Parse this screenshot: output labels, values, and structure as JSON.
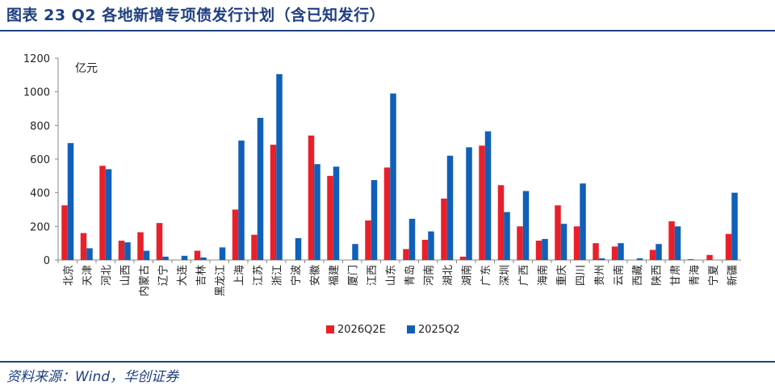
{
  "header": {
    "title": "图表 23   Q2 各地新增专项债发行计划（含已知发行）"
  },
  "footer": {
    "source": "资料来源：Wind，华创证券"
  },
  "colors": {
    "series1": "#e8202a",
    "series2": "#1060b8",
    "rule": "#1f3f80"
  },
  "chart_data": {
    "type": "bar",
    "unit_label": "亿元",
    "ylim": [
      0,
      1200
    ],
    "yticks": [
      0,
      200,
      400,
      600,
      800,
      1000,
      1200
    ],
    "grid": false,
    "legend_position": "bottom-center",
    "categories": [
      "北京",
      "天津",
      "河北",
      "山西",
      "内蒙古",
      "辽宁",
      "大连",
      "吉林",
      "黑龙江",
      "上海",
      "江苏",
      "浙江",
      "宁波",
      "安徽",
      "福建",
      "厦门",
      "江西",
      "山东",
      "青岛",
      "河南",
      "湖北",
      "湖南",
      "广东",
      "深圳",
      "广西",
      "海南",
      "重庆",
      "四川",
      "贵州",
      "云南",
      "西藏",
      "陕西",
      "甘肃",
      "青海",
      "宁夏",
      "新疆"
    ],
    "series": [
      {
        "name": "2026Q2E",
        "values": [
          325,
          160,
          560,
          115,
          165,
          220,
          0,
          55,
          0,
          300,
          150,
          685,
          0,
          740,
          500,
          0,
          235,
          550,
          65,
          120,
          365,
          20,
          680,
          445,
          200,
          115,
          325,
          200,
          100,
          80,
          0,
          60,
          230,
          5,
          30,
          155
        ]
      },
      {
        "name": "2025Q2",
        "values": [
          695,
          70,
          540,
          105,
          55,
          20,
          25,
          15,
          75,
          710,
          845,
          1105,
          130,
          570,
          555,
          95,
          475,
          990,
          245,
          170,
          620,
          670,
          765,
          285,
          410,
          125,
          215,
          455,
          10,
          100,
          10,
          95,
          200,
          0,
          0,
          400
        ]
      }
    ]
  }
}
